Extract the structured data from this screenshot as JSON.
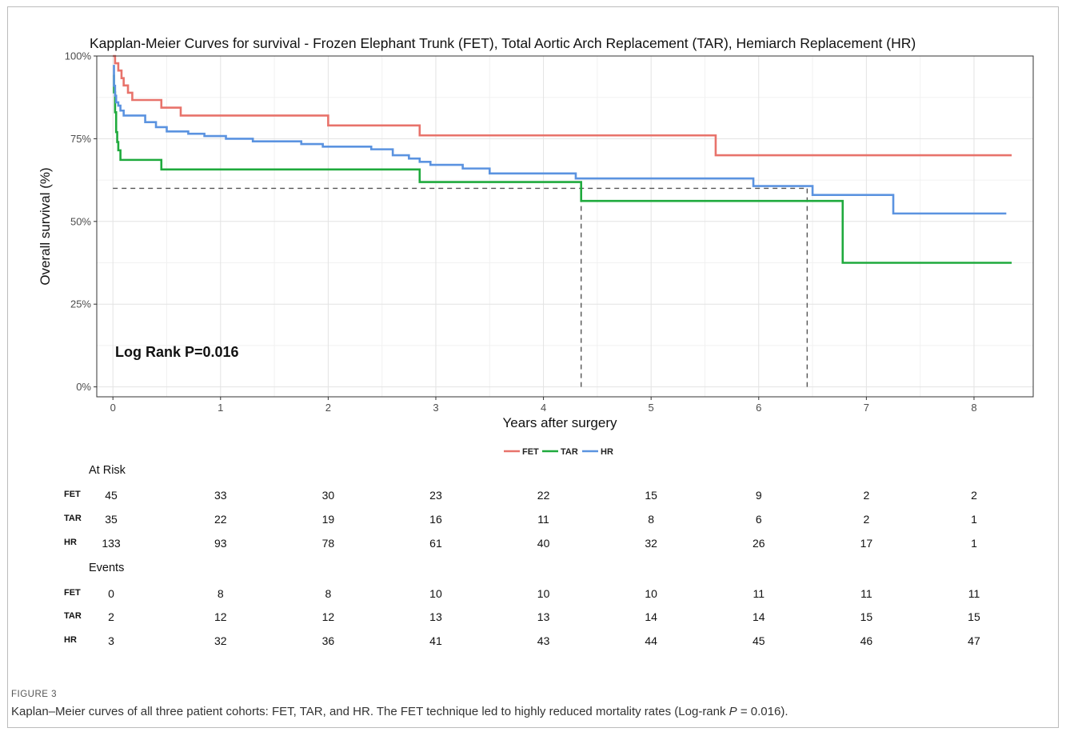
{
  "chart_data": {
    "type": "line",
    "title": "Kapplan-Meier Curves for survival - Frozen Elephant Trunk (FET), Total Aortic Arch Replacement (TAR), Hemiarch Replacement (HR)",
    "xlabel": "Years after surgery",
    "ylabel": "Overall survival (%)",
    "xlim": [
      -0.15,
      8.55
    ],
    "ylim": [
      -0.03,
      1.0
    ],
    "x_ticks": [
      0,
      1,
      2,
      3,
      4,
      5,
      6,
      7,
      8
    ],
    "x_tick_labels": [
      "0",
      "1",
      "2",
      "3",
      "4",
      "5",
      "6",
      "7",
      "8"
    ],
    "y_ticks": [
      0,
      0.25,
      0.5,
      0.75,
      1.0
    ],
    "y_tick_labels": [
      "0%",
      "25%",
      "50%",
      "75%",
      "100%"
    ],
    "grid": true,
    "legend_position": "bottom",
    "annotation": "Log Rank P=0.016",
    "reference_lines": [
      {
        "type": "horizontal",
        "y": 0.6,
        "x_from": 0,
        "x_to": 6.45
      },
      {
        "type": "vertical",
        "x": 4.35,
        "y_from": 0,
        "y_to": 0.6
      },
      {
        "type": "vertical",
        "x": 6.45,
        "y_from": 0,
        "y_to": 0.6
      }
    ],
    "series": [
      {
        "name": "FET",
        "color": "#e8736b",
        "x": [
          0,
          0.02,
          0.05,
          0.08,
          0.1,
          0.14,
          0.18,
          0.45,
          0.63,
          2.0,
          2.85,
          5.6,
          8.35
        ],
        "y": [
          1.0,
          0.978,
          0.956,
          0.933,
          0.911,
          0.889,
          0.867,
          0.844,
          0.82,
          0.79,
          0.76,
          0.7,
          0.7
        ]
      },
      {
        "name": "TAR",
        "color": "#1faa3d",
        "x": [
          0,
          0.01,
          0.02,
          0.03,
          0.04,
          0.05,
          0.07,
          0.45,
          2.85,
          4.35,
          6.78,
          8.35
        ],
        "y": [
          0.94,
          0.89,
          0.83,
          0.77,
          0.74,
          0.715,
          0.686,
          0.657,
          0.619,
          0.562,
          0.375,
          0.375
        ]
      },
      {
        "name": "HR",
        "color": "#5b93e0",
        "x": [
          0,
          0.01,
          0.02,
          0.03,
          0.05,
          0.07,
          0.1,
          0.3,
          0.4,
          0.5,
          0.7,
          0.85,
          1.05,
          1.3,
          1.75,
          1.95,
          2.4,
          2.6,
          2.75,
          2.85,
          2.95,
          3.25,
          3.5,
          4.3,
          5.95,
          6.5,
          7.25,
          8.3
        ],
        "y": [
          0.97,
          0.91,
          0.88,
          0.86,
          0.85,
          0.835,
          0.82,
          0.8,
          0.785,
          0.772,
          0.765,
          0.758,
          0.75,
          0.742,
          0.734,
          0.726,
          0.718,
          0.7,
          0.69,
          0.68,
          0.671,
          0.66,
          0.645,
          0.63,
          0.607,
          0.58,
          0.524,
          0.524
        ]
      }
    ],
    "at_risk": {
      "heading": "At Risk",
      "times": [
        0,
        1,
        2,
        3,
        4,
        5,
        6,
        7,
        8
      ],
      "rows": [
        {
          "label": "FET",
          "values": [
            "45",
            "33",
            "30",
            "23",
            "22",
            "15",
            "9",
            "2",
            "2"
          ]
        },
        {
          "label": "TAR",
          "values": [
            "35",
            "22",
            "19",
            "16",
            "11",
            "8",
            "6",
            "2",
            "1"
          ]
        },
        {
          "label": "HR",
          "values": [
            "133",
            "93",
            "78",
            "61",
            "40",
            "32",
            "26",
            "17",
            "1"
          ]
        }
      ]
    },
    "events": {
      "heading": "Events",
      "times": [
        0,
        1,
        2,
        3,
        4,
        5,
        6,
        7,
        8
      ],
      "rows": [
        {
          "label": "FET",
          "values": [
            "0",
            "8",
            "8",
            "10",
            "10",
            "10",
            "11",
            "11",
            "11"
          ]
        },
        {
          "label": "TAR",
          "values": [
            "2",
            "12",
            "12",
            "13",
            "13",
            "14",
            "14",
            "15",
            "15"
          ]
        },
        {
          "label": "HR",
          "values": [
            "3",
            "32",
            "36",
            "41",
            "43",
            "44",
            "45",
            "46",
            "47"
          ]
        }
      ]
    }
  },
  "figure": {
    "label": "FIGURE 3",
    "caption_before": "Kaplan–Meier curves of all three patient cohorts: FET, TAR, and HR. The FET technique led to highly reduced mortality rates (Log-rank ",
    "caption_p": "P",
    "caption_after": " = 0.016)."
  }
}
